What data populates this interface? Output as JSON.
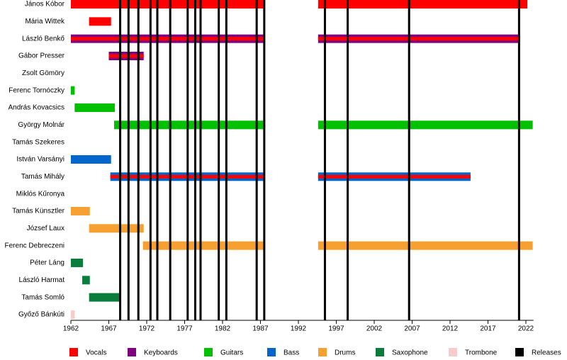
{
  "chart_data": {
    "type": "timeline",
    "xlim": [
      1962,
      2023
    ],
    "xticks": [
      1962,
      1967,
      1972,
      1977,
      1982,
      1987,
      1992,
      1997,
      2002,
      2007,
      2012,
      2017,
      2022
    ],
    "series": [
      {
        "name": "Vocals",
        "color": "#ff0000"
      },
      {
        "name": "Keyboards",
        "color": "#800080"
      },
      {
        "name": "Guitars",
        "color": "#00c000"
      },
      {
        "name": "Bass",
        "color": "#0066cc"
      },
      {
        "name": "Drums",
        "color": "#f5a030"
      },
      {
        "name": "Saxophone",
        "color": "#0a7d3c"
      },
      {
        "name": "Trombone",
        "color": "#f8cccc"
      },
      {
        "name": "Releases",
        "color": "#000000",
        "values": [
          1968.5,
          1969.6,
          1970.9,
          1972.5,
          1973.4,
          1975.1,
          1977.4,
          1978.4,
          1979.1,
          1981.5,
          1982.5,
          1986.5,
          1987.5,
          1995.5,
          1998.5,
          2006.6,
          2021.1
        ]
      }
    ],
    "members": [
      {
        "name": "János Kóbor",
        "roles": [
          "Vocals"
        ],
        "spans": [
          {
            "start": 1962,
            "end": 1987.5
          },
          {
            "start": 1994.6,
            "end": 2022.2
          }
        ]
      },
      {
        "name": "Mária Wittek",
        "roles": [
          "Vocals"
        ],
        "spans": [
          {
            "start": 1964.4,
            "end": 1967.3
          }
        ]
      },
      {
        "name": "László Benkő",
        "roles": [
          "Keyboards",
          "Vocals"
        ],
        "spans": [
          {
            "start": 1962,
            "end": 1987.5
          },
          {
            "start": 1994.6,
            "end": 2021.1
          }
        ]
      },
      {
        "name": "Gábor Presser",
        "roles": [
          "Keyboards",
          "Vocals"
        ],
        "spans": [
          {
            "start": 1967,
            "end": 1971.6
          }
        ]
      },
      {
        "name": "Zsolt Gömöry",
        "roles": [
          "Keyboards"
        ],
        "spans": []
      },
      {
        "name": "Ferenc Tornóczky",
        "roles": [
          "Guitars"
        ],
        "spans": [
          {
            "start": 1962,
            "end": 1962.5
          }
        ]
      },
      {
        "name": "András Kovacsics",
        "roles": [
          "Guitars"
        ],
        "spans": [
          {
            "start": 1962.5,
            "end": 1967.8
          }
        ]
      },
      {
        "name": "György Molnár",
        "roles": [
          "Guitars"
        ],
        "spans": [
          {
            "start": 1967.7,
            "end": 1987.5
          },
          {
            "start": 1994.6,
            "end": 2022.9
          }
        ]
      },
      {
        "name": "Tamás Szekeres",
        "roles": [
          "Guitars"
        ],
        "spans": []
      },
      {
        "name": "István Varsányi",
        "roles": [
          "Bass"
        ],
        "spans": [
          {
            "start": 1962,
            "end": 1967.3
          }
        ]
      },
      {
        "name": "Tamás Mihály",
        "roles": [
          "Bass",
          "Vocals"
        ],
        "spans": [
          {
            "start": 1967.2,
            "end": 1987.5
          },
          {
            "start": 1994.6,
            "end": 2014.7
          }
        ]
      },
      {
        "name": "Miklós Kűronya",
        "roles": [
          "Bass"
        ],
        "spans": []
      },
      {
        "name": "Tamás Künsztler",
        "roles": [
          "Drums"
        ],
        "spans": [
          {
            "start": 1962,
            "end": 1964.5
          }
        ]
      },
      {
        "name": "József Laux",
        "roles": [
          "Drums"
        ],
        "spans": [
          {
            "start": 1964.4,
            "end": 1971.6
          }
        ]
      },
      {
        "name": "Ferenc Debreczeni",
        "roles": [
          "Drums"
        ],
        "spans": [
          {
            "start": 1971.5,
            "end": 1987.5
          },
          {
            "start": 1994.6,
            "end": 2022.9
          }
        ]
      },
      {
        "name": "Péter Láng",
        "roles": [
          "Saxophone"
        ],
        "spans": [
          {
            "start": 1962,
            "end": 1963.6
          }
        ]
      },
      {
        "name": "László Harmat",
        "roles": [
          "Saxophone"
        ],
        "spans": [
          {
            "start": 1963.5,
            "end": 1964.5
          }
        ]
      },
      {
        "name": "Tamás Somló",
        "roles": [
          "Saxophone"
        ],
        "spans": [
          {
            "start": 1964.4,
            "end": 1968.6
          }
        ]
      },
      {
        "name": "Győző Bánkúti",
        "roles": [
          "Trombone"
        ],
        "spans": [
          {
            "start": 1962,
            "end": 1962.5
          }
        ]
      }
    ]
  }
}
